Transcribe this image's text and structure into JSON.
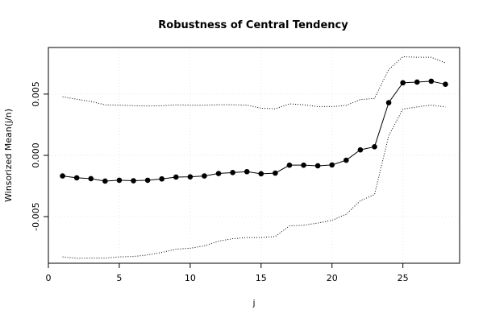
{
  "chart_data": {
    "type": "line",
    "title": "Robustness of Central Tendency",
    "xlabel": "j",
    "ylabel": "Winsorized Mean(j/n)",
    "xlim": [
      0,
      29
    ],
    "ylim": [
      -0.0088,
      0.0088
    ],
    "x_ticks": [
      0,
      5,
      10,
      15,
      20,
      25
    ],
    "x_tick_labels": [
      "0",
      "5",
      "10",
      "15",
      "20",
      "25"
    ],
    "y_ticks": [
      -0.005,
      0.0,
      0.005
    ],
    "y_tick_labels": [
      "-0.005",
      "0.000",
      "0.005"
    ],
    "grid": true,
    "series": [
      {
        "role": "mean",
        "style": "solid line with filled points",
        "color": "#000000",
        "x": [
          1,
          2,
          3,
          4,
          5,
          6,
          7,
          8,
          9,
          10,
          11,
          12,
          13,
          14,
          15,
          16,
          17,
          18,
          19,
          20,
          21,
          22,
          23,
          24,
          25,
          26,
          27,
          28
        ],
        "values": [
          -0.00168,
          -0.00183,
          -0.0019,
          -0.0021,
          -0.00203,
          -0.00207,
          -0.00203,
          -0.00192,
          -0.00177,
          -0.00175,
          -0.00168,
          -0.00148,
          -0.0014,
          -0.00133,
          -0.0015,
          -0.00145,
          -0.0008,
          -0.0008,
          -0.00085,
          -0.00078,
          -0.0004,
          0.00045,
          0.0007,
          0.0043,
          0.00592,
          0.00598,
          0.00605,
          0.0058
        ]
      },
      {
        "role": "upper-bound",
        "style": "dotted",
        "color": "#000000",
        "x": [
          1,
          2,
          3,
          4,
          5,
          6,
          7,
          8,
          9,
          10,
          11,
          12,
          13,
          14,
          15,
          16,
          17,
          18,
          19,
          20,
          21,
          22,
          23,
          24,
          25,
          26,
          27,
          28
        ],
        "values": [
          0.00478,
          0.00458,
          0.0044,
          0.00412,
          0.0041,
          0.00405,
          0.00403,
          0.00405,
          0.00412,
          0.0041,
          0.0041,
          0.00413,
          0.00413,
          0.0041,
          0.00385,
          0.0038,
          0.0042,
          0.00413,
          0.00398,
          0.00398,
          0.00408,
          0.00455,
          0.00465,
          0.007,
          0.00805,
          0.008,
          0.008,
          0.00755
        ]
      },
      {
        "role": "lower-bound",
        "style": "dotted",
        "color": "#000000",
        "x": [
          1,
          2,
          3,
          4,
          5,
          6,
          7,
          8,
          9,
          10,
          11,
          12,
          13,
          14,
          15,
          16,
          17,
          18,
          19,
          20,
          21,
          22,
          23,
          24,
          25,
          26,
          27,
          28
        ],
        "values": [
          -0.00828,
          -0.0084,
          -0.00838,
          -0.00838,
          -0.00828,
          -0.00825,
          -0.00812,
          -0.00792,
          -0.00765,
          -0.00758,
          -0.00738,
          -0.007,
          -0.0068,
          -0.0067,
          -0.0067,
          -0.00662,
          -0.00575,
          -0.0057,
          -0.00552,
          -0.0053,
          -0.0048,
          -0.0037,
          -0.0032,
          0.0016,
          0.00378,
          0.00395,
          0.0041,
          0.00395
        ]
      }
    ]
  }
}
